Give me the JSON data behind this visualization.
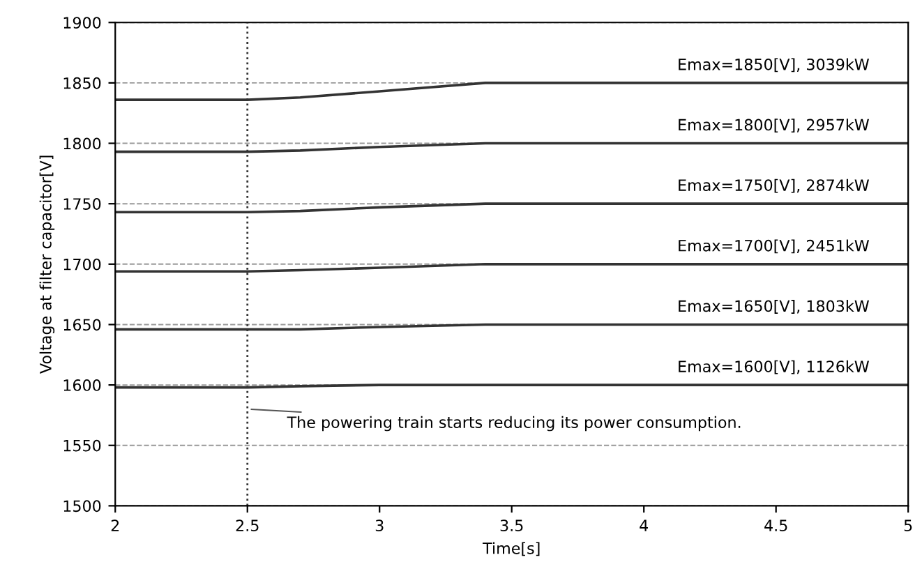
{
  "chart_data": {
    "type": "line",
    "xlabel": "Time[s]",
    "ylabel": "Voltage at filter capacitor[V]",
    "x": [
      2,
      2.5,
      2.7,
      3.0,
      3.4,
      5
    ],
    "series": [
      {
        "name": "Emax=1850[V], 3039kW",
        "color": "#333333",
        "values": [
          1836,
          1836,
          1838,
          1843,
          1850,
          1850
        ]
      },
      {
        "name": "Emax=1800[V], 2957kW",
        "color": "#333333",
        "values": [
          1793,
          1793,
          1794,
          1797,
          1800,
          1800
        ]
      },
      {
        "name": "Emax=1750[V], 2874kW",
        "color": "#333333",
        "values": [
          1743,
          1743,
          1744,
          1747,
          1750,
          1750
        ]
      },
      {
        "name": "Emax=1700[V], 2451kW",
        "color": "#333333",
        "values": [
          1694,
          1694,
          1695,
          1697,
          1700,
          1700
        ]
      },
      {
        "name": "Emax=1650[V], 1803kW",
        "color": "#333333",
        "values": [
          1646,
          1646,
          1646,
          1648,
          1650,
          1650
        ]
      },
      {
        "name": "Emax=1600[V], 1126kW",
        "color": "#333333",
        "values": [
          1598,
          1598,
          1599,
          1600,
          1600,
          1600
        ]
      }
    ],
    "xlim": [
      2,
      5
    ],
    "xticks": [
      2,
      2.5,
      3,
      3.5,
      4,
      4.5,
      5
    ],
    "ylim": [
      1500,
      1900
    ],
    "yticks": [
      1500,
      1550,
      1600,
      1650,
      1700,
      1750,
      1800,
      1850,
      1900
    ],
    "grid": "y",
    "line_style": "solid",
    "marker": "none",
    "ref_lines": [
      {
        "axis": "x",
        "value": 2.5,
        "color": "#333333",
        "line_style": "dotted"
      }
    ],
    "annotations": [
      {
        "text": "The powering train starts reducing its power consumption.",
        "x": 2.5,
        "y": 1580
      }
    ]
  }
}
